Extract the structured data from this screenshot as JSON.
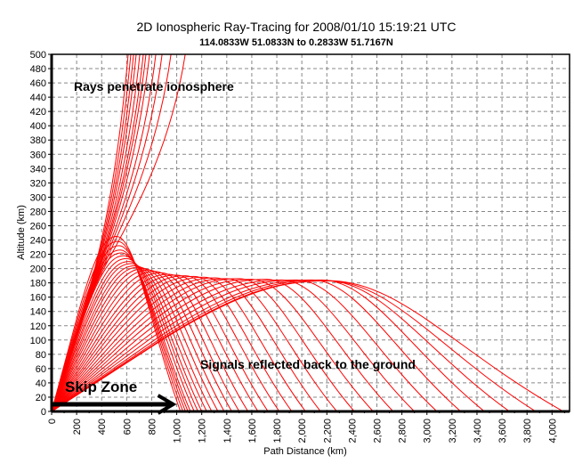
{
  "chart_data": {
    "type": "line",
    "title": "2D Ionospheric Ray-Tracing for 2008/01/10 15:19:21 UTC",
    "subtitle": "114.0833W 51.0833N to   0.2833W 51.7167N",
    "xlabel": "Path Distance (km)",
    "ylabel": "Altitude (km)",
    "xlim": [
      0,
      4140
    ],
    "ylim": [
      0,
      500
    ],
    "grid": true,
    "x_ticks": [
      "0",
      "200",
      "400",
      "600",
      "800",
      "1,000",
      "1,200",
      "1,400",
      "1,600",
      "1,800",
      "2,000",
      "2,200",
      "2,400",
      "2,600",
      "2,800",
      "3,000",
      "3,200",
      "3,400",
      "3,600",
      "3,800",
      "4,000"
    ],
    "y_ticks": [
      "0",
      "20",
      "40",
      "60",
      "80",
      "100",
      "120",
      "140",
      "160",
      "180",
      "200",
      "220",
      "240",
      "260",
      "280",
      "300",
      "320",
      "340",
      "360",
      "380",
      "400",
      "420",
      "440",
      "460",
      "480",
      "500"
    ],
    "ray_color": "#ff0000",
    "reflected_rays_landing_apex": [
      [
        1030,
        520,
        245
      ],
      [
        1050,
        530,
        238
      ],
      [
        1070,
        540,
        232
      ],
      [
        1090,
        550,
        226
      ],
      [
        1110,
        560,
        222
      ],
      [
        1140,
        580,
        218
      ],
      [
        1170,
        600,
        214
      ],
      [
        1200,
        620,
        210
      ],
      [
        1240,
        640,
        207
      ],
      [
        1280,
        670,
        204
      ],
      [
        1330,
        700,
        202
      ],
      [
        1380,
        740,
        200
      ],
      [
        1440,
        780,
        198
      ],
      [
        1500,
        830,
        196
      ],
      [
        1570,
        880,
        194
      ],
      [
        1650,
        940,
        192
      ],
      [
        1730,
        1000,
        191
      ],
      [
        1820,
        1070,
        190
      ],
      [
        1920,
        1140,
        189
      ],
      [
        2030,
        1220,
        188
      ],
      [
        2150,
        1310,
        187
      ],
      [
        2280,
        1400,
        186
      ],
      [
        2420,
        1500,
        186
      ],
      [
        2570,
        1600,
        185
      ],
      [
        2730,
        1720,
        185
      ],
      [
        2900,
        1840,
        184
      ],
      [
        3080,
        1960,
        184
      ],
      [
        3270,
        2080,
        184
      ],
      [
        3460,
        2160,
        184
      ],
      [
        3660,
        2200,
        183
      ],
      [
        3870,
        2210,
        183
      ],
      [
        4090,
        2220,
        183
      ]
    ],
    "penetrating_rays_x_at_500km": [
      612,
      633,
      655,
      676,
      705,
      733,
      754,
      783,
      833,
      883,
      954,
      1068
    ],
    "annotations": {
      "penetrate": "Rays penetrate ionosphere",
      "reflected": "Signals reflected back to the ground",
      "skip_zone": "Skip Zone"
    },
    "skip_zone_km": [
      0,
      1000
    ],
    "skip_zone_arrow_alt": 10
  }
}
